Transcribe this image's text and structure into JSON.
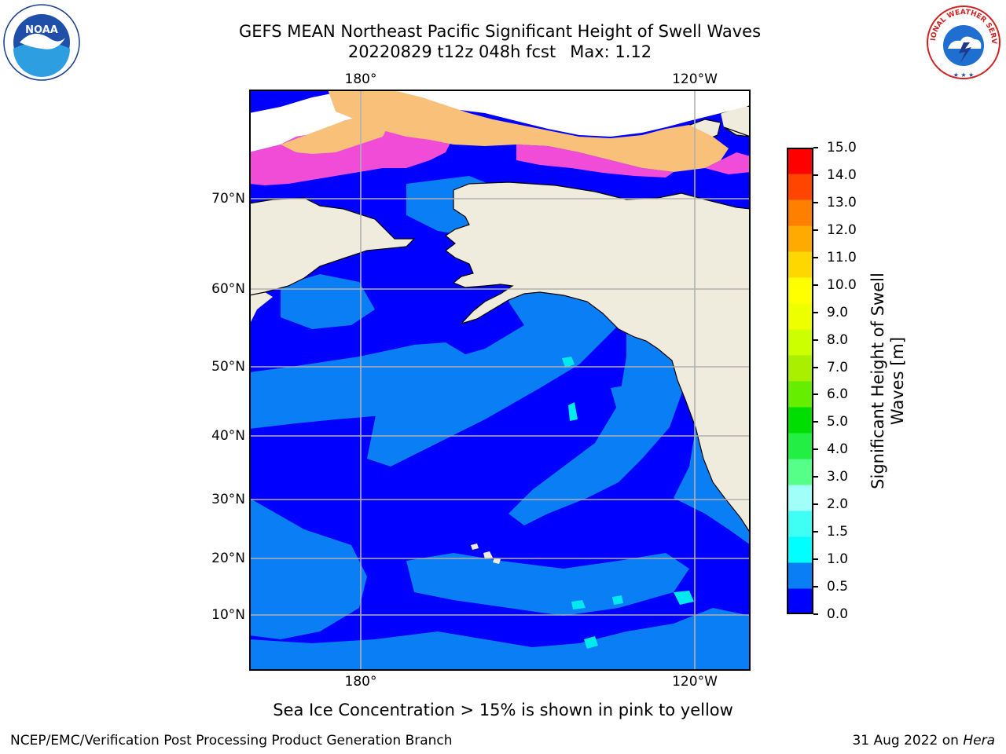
{
  "title": {
    "line1": "GEFS MEAN Northeast Pacific Significant Height of Swell Waves",
    "line2": "20220829 t12z 048h fcst",
    "max": "Max: 1.12"
  },
  "map": {
    "lat_labels": [
      "70°N",
      "60°N",
      "50°N",
      "40°N",
      "30°N",
      "20°N",
      "10°N"
    ],
    "lon_labels": [
      "180°",
      "120°W"
    ],
    "colors": {
      "land": "#efecdd",
      "border": "#000000",
      "grid": "#b0b0b0",
      "swell_0_05": "#0000ff",
      "swell_05_1": "#0a7ff5",
      "swell_1_15": "#00e8f0",
      "ice_low": "#f04cd8",
      "ice_mid": "#f8c079",
      "ice_high": "#ffa500",
      "no_data": "#ffffff"
    }
  },
  "colorbar": {
    "title_line1": "Significant Height of Swell",
    "title_line2": "Waves [m]",
    "levels": [
      "15.0",
      "14.0",
      "13.0",
      "12.0",
      "11.0",
      "10.0",
      "9.0",
      "8.0",
      "7.0",
      "6.0",
      "5.0",
      "4.0",
      "3.0",
      "2.0",
      "1.5",
      "1.0",
      "0.5",
      "0.0"
    ],
    "colors": [
      "#0000ff",
      "#0a7ff5",
      "#00ffff",
      "#3ffff4",
      "#a0fff8",
      "#55ff88",
      "#22ee44",
      "#00dd00",
      "#66ee00",
      "#aaee00",
      "#ccff00",
      "#eeff00",
      "#ffff00",
      "#ffd700",
      "#ffaa00",
      "#ff7f00",
      "#ff4500",
      "#ff0000"
    ]
  },
  "caption": "Sea Ice Concentration > 15% is shown in pink to yellow",
  "footer": {
    "left": "NCEP/EMC/Verification Post Processing Product Generation Branch",
    "right_date": "31 Aug 2022 on",
    "right_machine": "Hera"
  },
  "logos": {
    "noaa_text": "NOAA",
    "nws_text": "NATIONAL WEATHER SERVICE"
  }
}
